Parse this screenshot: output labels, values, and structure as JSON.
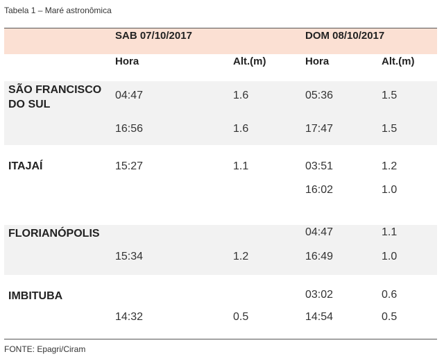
{
  "caption": "Tabela 1 – Maré astronômica",
  "header": {
    "day1": "SAB 07/10/2017",
    "day2": "DOM 08/10/2017",
    "hora": "Hora",
    "alt": "Alt.(m)"
  },
  "locations": [
    {
      "name": "SÃO FRANCISCO DO SUL",
      "rows": [
        {
          "h1": "04:47",
          "a1": "1.6",
          "h2": "05:36",
          "a2": "1.5"
        },
        {
          "h1": "16:56",
          "a1": "1.6",
          "h2": "17:47",
          "a2": "1.5"
        }
      ]
    },
    {
      "name": "ITAJAÍ",
      "rows": [
        {
          "h1": "15:27",
          "a1": "1.1",
          "h2": "03:51",
          "a2": "1.2"
        },
        {
          "h1": "",
          "a1": "",
          "h2": "16:02",
          "a2": "1.0"
        }
      ]
    },
    {
      "name": "FLORIANÓPOLIS",
      "rows": [
        {
          "h1": "",
          "a1": "",
          "h2": "04:47",
          "a2": "1.1"
        },
        {
          "h1": "15:34",
          "a1": "1.2",
          "h2": "16:49",
          "a2": "1.0"
        }
      ]
    },
    {
      "name": "IMBITUBA",
      "rows": [
        {
          "h1": "",
          "a1": "",
          "h2": "03:02",
          "a2": "0.6"
        },
        {
          "h1": "14:32",
          "a1": "0.5",
          "h2": "14:54",
          "a2": "0.5"
        }
      ]
    }
  ],
  "source": "FONTE: Epagri/Ciram"
}
